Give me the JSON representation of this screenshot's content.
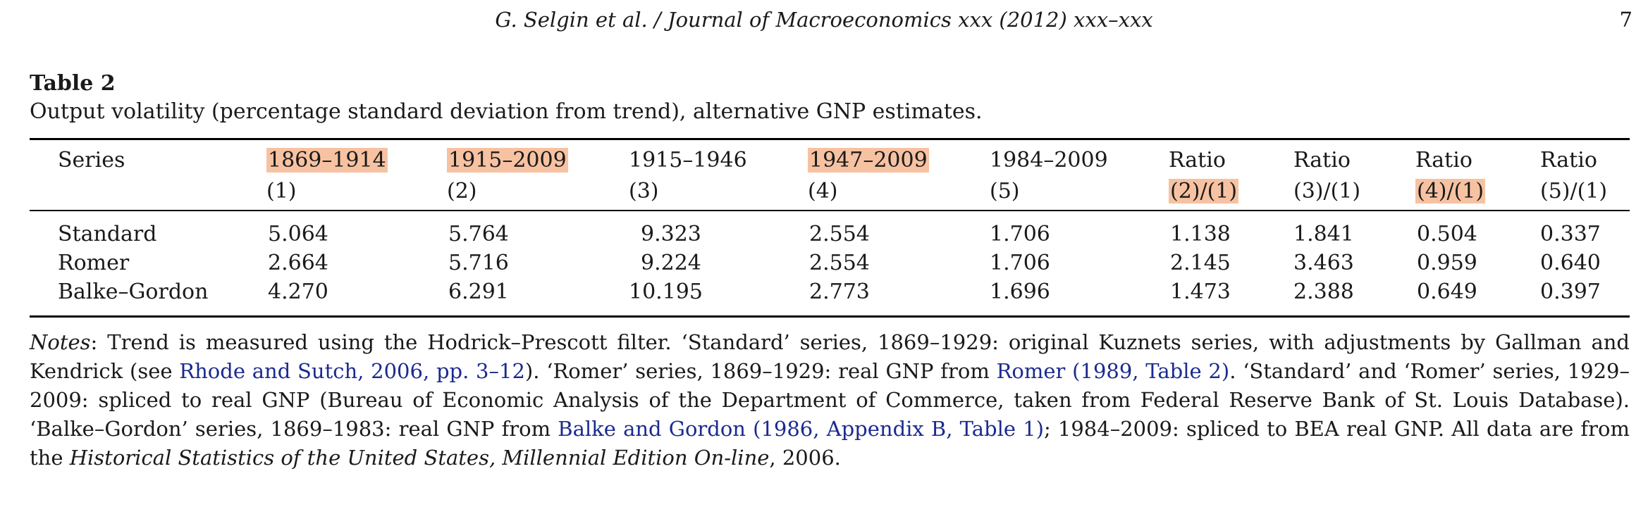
{
  "running_head": {
    "title": "G. Selgin et al. / Journal of Macroeconomics xxx (2012) xxx–xxx",
    "page": "7"
  },
  "table": {
    "label": "Table 2",
    "caption": "Output volatility (percentage standard deviation from trend), alternative GNP estimates.",
    "highlight_color": "#f7c2a2",
    "columns": [
      {
        "line1": "Series",
        "line2": ""
      },
      {
        "line1": "1869–1914",
        "line2": "(1)",
        "highlight": "line1"
      },
      {
        "line1": "1915–2009",
        "line2": "(2)",
        "highlight": "line1"
      },
      {
        "line1": "1915–1946",
        "line2": "(3)"
      },
      {
        "line1": "1947–2009",
        "line2": "(4)",
        "highlight": "line1"
      },
      {
        "line1": "1984–2009",
        "line2": "(5)"
      },
      {
        "line1": "Ratio",
        "line2": "(2)/(1)",
        "highlight": "line2"
      },
      {
        "line1": "Ratio",
        "line2": "(3)/(1)"
      },
      {
        "line1": "Ratio",
        "line2": "(4)/(1)",
        "highlight": "line2"
      },
      {
        "line1": "Ratio",
        "line2": "(5)/(1)"
      }
    ],
    "rows": [
      [
        "Standard",
        "5.064",
        "5.764",
        "9.323",
        "2.554",
        "1.706",
        "1.138",
        "1.841",
        "0.504",
        "0.337"
      ],
      [
        "Romer",
        "2.664",
        "5.716",
        "9.224",
        "2.554",
        "1.706",
        "2.145",
        "3.463",
        "0.959",
        "0.640"
      ],
      [
        "Balke–Gordon",
        "4.270",
        "6.291",
        "10.195",
        "2.773",
        "1.696",
        "1.473",
        "2.388",
        "0.649",
        "0.397"
      ]
    ]
  },
  "notes": {
    "lead": "Notes",
    "t1": ": Trend is measured using the Hodrick–Prescott filter. ‘Standard’ series, 1869–1929: original Kuznets series, with adjustments by Gallman and Kendrick (see ",
    "link1": "Rhode and Sutch, 2006, pp. 3–12",
    "t2": "). ‘Romer’ series, 1869–1929: real GNP from ",
    "link2": "Romer (1989, Table 2)",
    "t3": ". ‘Standard’ and ‘Romer’ series, 1929–2009: spliced to real GNP (Bureau of Economic Analysis of the Department of Commerce, taken from Federal Reserve Bank of St. Louis Database). ‘Balke–Gordon’ series, 1869–1983: real GNP from ",
    "link3": "Balke and Gordon (1986, Appendix B, Table 1)",
    "t4": "; 1984–2009: spliced to BEA real GNP. All data are from the ",
    "source_italic": "Historical Statistics of the United States, Millennial Edition On-line",
    "t5": ", 2006."
  }
}
